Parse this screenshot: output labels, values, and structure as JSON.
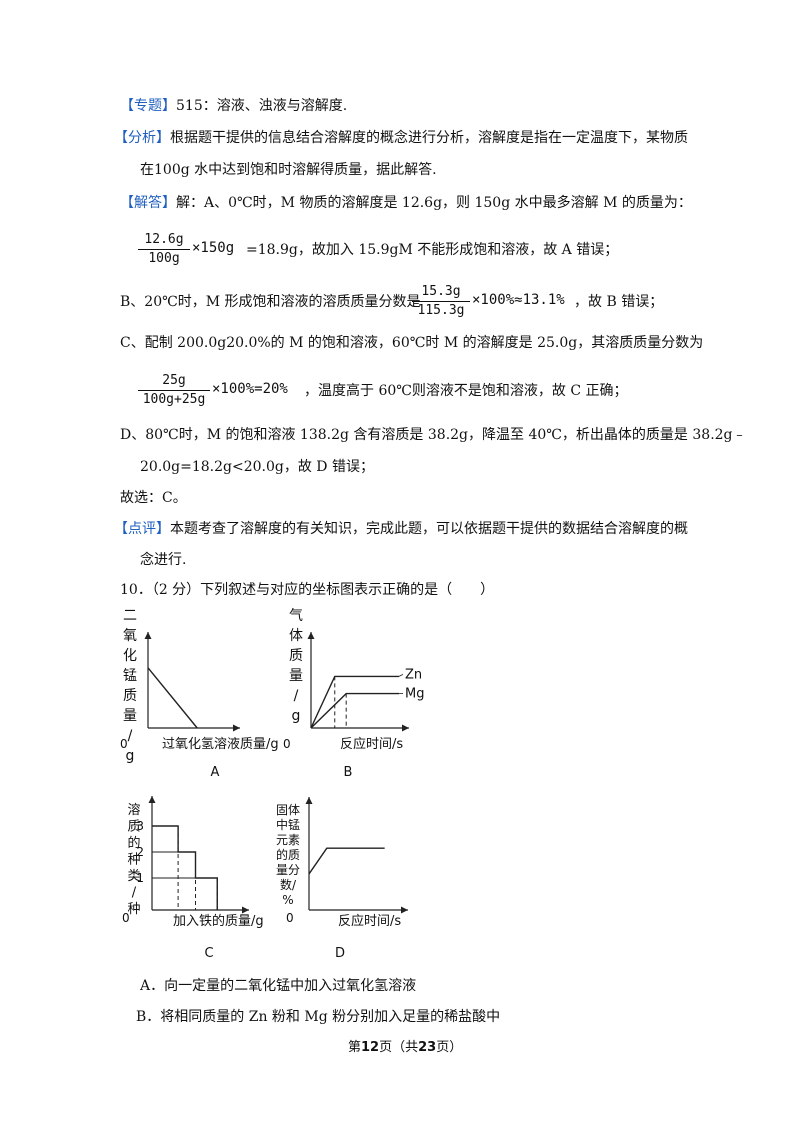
{
  "topic": {
    "tag": "【专题】",
    "text": "515：溶液、浊液与溶解度."
  },
  "analysis": {
    "tag": "【分析】",
    "line1": "根据题干提供的信息结合溶解度的概念进行分析，溶解度是指在一定温度下，某物质",
    "line2": "在100g 水中达到饱和时溶解得质量，据此解答."
  },
  "answer": {
    "tag": "【解答】",
    "intro": "解：A、0℃时，M 物质的溶解度是 12.6g，则 150g 水中最多溶解 M 的质量为：",
    "a_num": "12.6g",
    "a_den": "100g",
    "a_mult": "×150g",
    "a_rest": "=18.9g，故加入 15.9gM 不能形成饱和溶液，故 A 错误；",
    "b_pre": "B、20℃时，M 形成饱和溶液的溶质质量分数是",
    "b_num": "15.3g",
    "b_den": "115.3g",
    "b_mult": "×100%≈13.1%",
    "b_post": "，故 B 错误；",
    "c_line": "C、配制 200.0g20.0%的 M 的饱和溶液，60℃时 M 的溶解度是 25.0g，其溶质质量分数为",
    "c_num": "25g",
    "c_den": "100g+25g",
    "c_mult": "×100%=20%",
    "c_rest": "，温度高于 60℃则溶液不是饱和溶液，故 C 正确；",
    "d_line1": "D、80℃时，M 的饱和溶液 138.2g 含有溶质是 38.2g，降温至 40℃，析出晶体的质量是 38.2g﹣",
    "d_line2": "20.0g=18.2g<20.0g，故 D 错误；",
    "choice": "故选：C。"
  },
  "comment": {
    "tag": "【点评】",
    "line1": "本题考查了溶解度的有关知识，完成此题，可以依据题干提供的数据结合溶解度的概",
    "line2": "念进行."
  },
  "question": {
    "stem": "10．（2 分）下列叙述与对应的坐标图表示正确的是（　　）",
    "option_a": "A．向一定量的二氧化锰中加入过氧化氢溶液",
    "option_b": "B．将相同质量的 Zn 粉和 Mg 粉分别加入足量的稀盐酸中"
  },
  "chart_data": [
    {
      "type": "line",
      "caption": "A",
      "ylabel": "二氧化锰质量/g",
      "xlabel": "过氧化氢溶液质量/g",
      "origin": "0",
      "series": [
        {
          "x": [
            0,
            0.6
          ],
          "y": [
            0.7,
            0
          ]
        }
      ]
    },
    {
      "type": "line",
      "caption": "B",
      "ylabel": "气体质量/g",
      "xlabel": "反应时间/s",
      "origin": "0",
      "series": [
        {
          "name": "Zn",
          "x": [
            0,
            0.27,
            1
          ],
          "y": [
            0,
            0.6,
            0.6
          ]
        },
        {
          "name": "Mg",
          "x": [
            0,
            0.4,
            1
          ],
          "y": [
            0,
            0.4,
            0.4
          ]
        }
      ]
    },
    {
      "type": "line",
      "caption": "C",
      "ylabel": "溶质的种类/种",
      "xlabel": "加入铁的质量/g",
      "origin": "0",
      "yticks": [
        "3",
        "2",
        "1"
      ],
      "series": [
        {
          "x": [
            0,
            0.3,
            0.3,
            0.5,
            0.5,
            0.75,
            0.75
          ],
          "y": [
            3,
            3,
            2,
            2,
            1,
            1,
            0
          ]
        }
      ]
    },
    {
      "type": "line",
      "caption": "D",
      "ylabel": "固体中锰元素的质量分数/%",
      "xlabel": "反应时间/s",
      "origin": "0",
      "series": [
        {
          "x": [
            0,
            0.2,
            0.85
          ],
          "y": [
            0.35,
            0.6,
            0.6
          ]
        }
      ]
    }
  ],
  "footer": {
    "prefix": "第",
    "page": "12",
    "mid": "页（共",
    "total": "23",
    "suffix": "页）"
  },
  "colors": {
    "tag": "#1f5fbf",
    "text": "#111111"
  }
}
